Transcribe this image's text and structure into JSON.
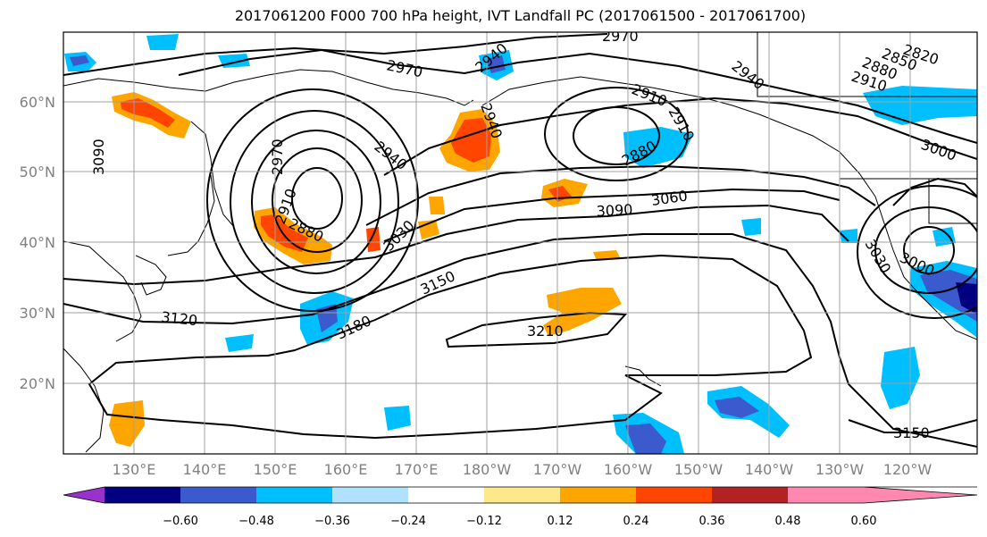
{
  "title": "2017061200 F000 700 hPa height, IVT Landfall PC (2017061500 - 2017061700)",
  "map": {
    "lat_labels": [
      "60°N",
      "50°N",
      "40°N",
      "30°N",
      "20°N"
    ],
    "lon_labels": [
      "130°E",
      "140°E",
      "150°E",
      "160°E",
      "170°E",
      "180°W",
      "170°W",
      "160°W",
      "150°W",
      "140°W",
      "130°W",
      "120°W"
    ],
    "contour_labels": [
      "2970",
      "2970",
      "2940",
      "2940",
      "2910",
      "2910",
      "2880",
      "2850",
      "2820",
      "2940",
      "2910",
      "3000",
      "3090",
      "2970",
      "2940",
      "2910",
      "2880",
      "3030",
      "3090",
      "3060",
      "2880",
      "3150",
      "3120",
      "3180",
      "3210",
      "3030",
      "3000",
      "3150"
    ],
    "colors": {
      "contour": "#000000",
      "coast": "#000000",
      "grid": "#a0a0a0"
    }
  },
  "colorbar": {
    "tick_labels": [
      "−0.60",
      "−0.48",
      "−0.36",
      "−0.24",
      "−0.12",
      "0.12",
      "0.24",
      "0.36",
      "0.48",
      "0.60"
    ],
    "colors": [
      "#9932cc",
      "#000080",
      "#3a5acd",
      "#00bfff",
      "#b0e2ff",
      "#ffffff",
      "#ffe88a",
      "#ffa500",
      "#ff4500",
      "#b22222",
      "#ff88b0"
    ]
  }
}
